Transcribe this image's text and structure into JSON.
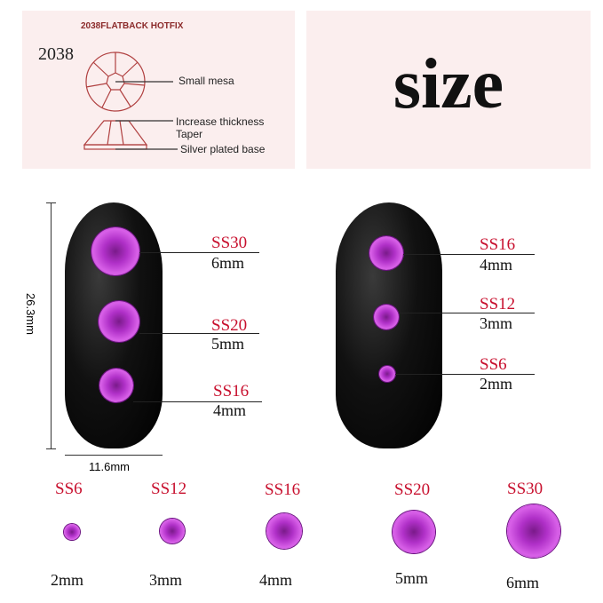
{
  "diagram": {
    "header": "2038FLATBACK HOTFIX",
    "model": "2038",
    "labels": [
      "Small mesa",
      "Increase thickness",
      "Taper",
      "Silver plated base"
    ]
  },
  "title": "size",
  "nail_left": {
    "height": "26.3mm",
    "width": "11.6mm",
    "items": [
      {
        "code": "SS30",
        "size": "6mm"
      },
      {
        "code": "SS20",
        "size": "5mm"
      },
      {
        "code": "SS16",
        "size": "4mm"
      }
    ]
  },
  "nail_right": {
    "items": [
      {
        "code": "SS16",
        "size": "4mm"
      },
      {
        "code": "SS12",
        "size": "3mm"
      },
      {
        "code": "SS6",
        "size": "2mm"
      }
    ]
  },
  "bottom_row": [
    {
      "code": "SS6",
      "size": "2mm"
    },
    {
      "code": "SS12",
      "size": "3mm"
    },
    {
      "code": "SS16",
      "size": "4mm"
    },
    {
      "code": "SS20",
      "size": "5mm"
    },
    {
      "code": "SS30",
      "size": "6mm"
    }
  ],
  "colors": {
    "panel": "#fbeeee",
    "label_red": "#c8102e",
    "gem": "#b030c8",
    "diagram": "#b04040"
  }
}
